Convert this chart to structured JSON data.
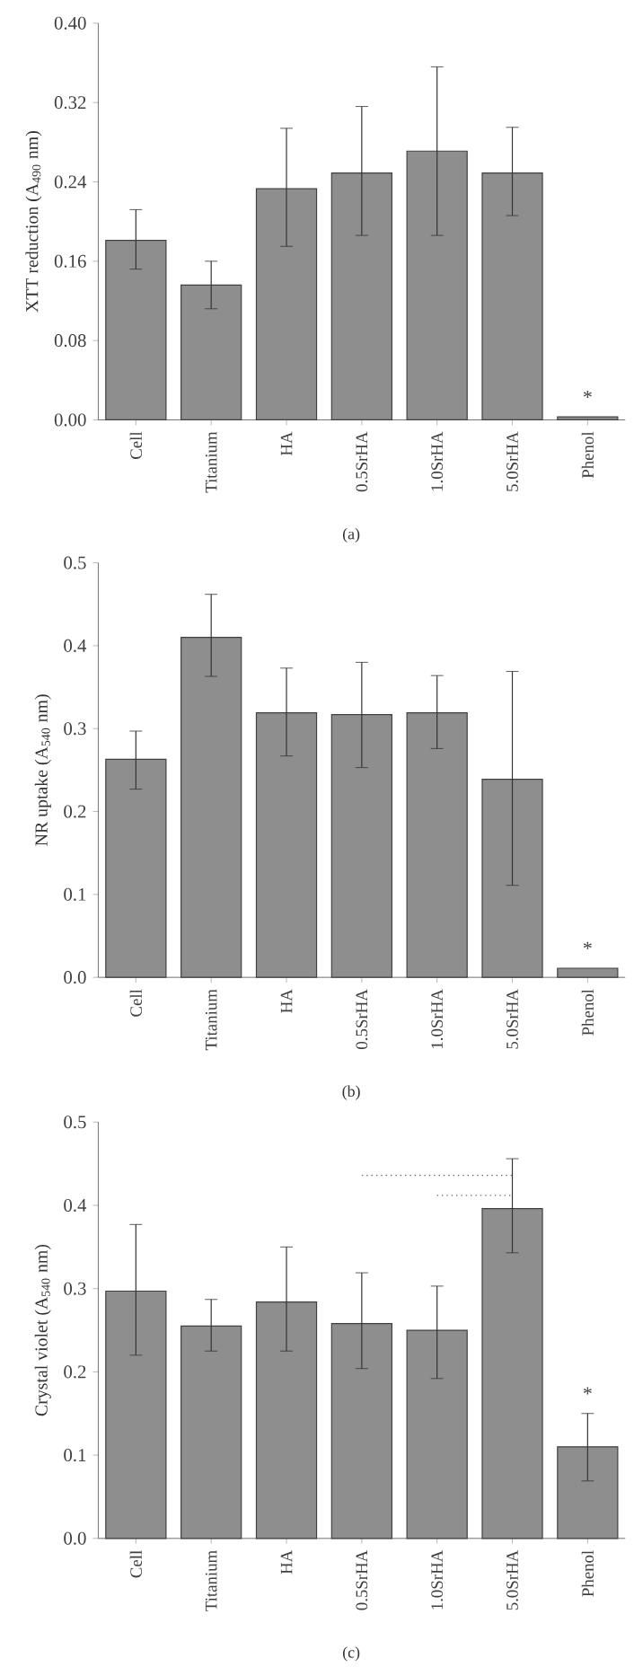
{
  "chart_data": [
    {
      "type": "bar",
      "categories": [
        "Cell",
        "Titanium",
        "HA",
        "0.5SrHA",
        "1.0SrHA",
        "5.0SrHA",
        "Phenol"
      ],
      "ylabel": "XTT reduction (A$_{490}$ nm)",
      "color": "#8e8e8e",
      "values": [
        0.181,
        0.136,
        0.233,
        0.249,
        0.271,
        0.249,
        0.003
      ],
      "errors": [
        [
          0.152,
          0.212
        ],
        [
          0.112,
          0.16
        ],
        [
          0.175,
          0.294
        ],
        [
          0.186,
          0.316
        ],
        [
          0.186,
          0.356
        ],
        [
          0.206,
          0.295
        ],
        null
      ],
      "ylim": [
        0,
        0.4
      ],
      "yticks": [
        {
          "value": 0,
          "label": "0.00"
        },
        {
          "value": 0.08,
          "label": "0.08"
        },
        {
          "value": 0.16,
          "label": "0.16"
        },
        {
          "value": 0.24,
          "label": "0.24"
        },
        {
          "value": 0.32,
          "label": "0.32"
        },
        {
          "value": 0.4,
          "label": "0.40"
        }
      ],
      "annotations": [
        "(a)",
        "*"
      ]
    },
    {
      "type": "bar",
      "categories": [
        "Cell",
        "Titanium",
        "HA",
        "0.5SrHA",
        "1.0SrHA",
        "5.0SrHA",
        "Phenol"
      ],
      "ylabel": "NR uptake (A$_{540}$ nm)",
      "color": "#8e8e8e",
      "values": [
        0.263,
        0.41,
        0.319,
        0.317,
        0.319,
        0.239,
        0.011
      ],
      "errors": [
        [
          0.227,
          0.297
        ],
        [
          0.363,
          0.462
        ],
        [
          0.267,
          0.373
        ],
        [
          0.253,
          0.38
        ],
        [
          0.276,
          0.364
        ],
        [
          0.111,
          0.369
        ],
        null
      ],
      "ylim": [
        0,
        0.5
      ],
      "yticks": [
        {
          "value": 0,
          "label": "0.0"
        },
        {
          "value": 0.1,
          "label": "0.1"
        },
        {
          "value": 0.2,
          "label": "0.2"
        },
        {
          "value": 0.3,
          "label": "0.3"
        },
        {
          "value": 0.4,
          "label": "0.4"
        },
        {
          "value": 0.5,
          "label": "0.5"
        }
      ],
      "annotations": [
        "(b)",
        "*"
      ]
    },
    {
      "type": "bar",
      "categories": [
        "Cell",
        "Titanium",
        "HA",
        "0.5SrHA",
        "1.0SrHA",
        "5.0SrHA",
        "Phenol"
      ],
      "ylabel": "Crystal violet (A$_{540}$ nm)",
      "series": [
        {
          "type": "bar",
          "color": "#8e8e8e",
          "values": [
            0.297,
            0.255,
            0.284,
            0.258,
            0.25,
            0.396,
            0.11
          ],
          "errors": [
            [
              0.22,
              0.377
            ],
            [
              0.225,
              0.287
            ],
            [
              0.225,
              0.35
            ],
            [
              0.204,
              0.319
            ],
            [
              0.192,
              0.303
            ],
            [
              0.343,
              0.456
            ],
            [
              0.069,
              0.15
            ]
          ]
        },
        {
          "type": "line",
          "color": "#666666",
          "line_style": "dotted",
          "x": [
            "0.5SrHA",
            "5.0SrHA"
          ],
          "values": [
            0.436,
            0.436
          ]
        },
        {
          "type": "line",
          "color": "#666666",
          "line_style": "dotted",
          "x": [
            "1.0SrHA",
            "5.0SrHA"
          ],
          "values": [
            0.412,
            0.412
          ]
        }
      ],
      "ylim": [
        0,
        0.5
      ],
      "yticks": [
        {
          "value": 0,
          "label": "0.0"
        },
        {
          "value": 0.1,
          "label": "0.1"
        },
        {
          "value": 0.2,
          "label": "0.2"
        },
        {
          "value": 0.3,
          "label": "0.3"
        },
        {
          "value": 0.4,
          "label": "0.4"
        },
        {
          "value": 0.5,
          "label": "0.5"
        }
      ],
      "annotations": [
        "(c)",
        "*"
      ]
    }
  ]
}
